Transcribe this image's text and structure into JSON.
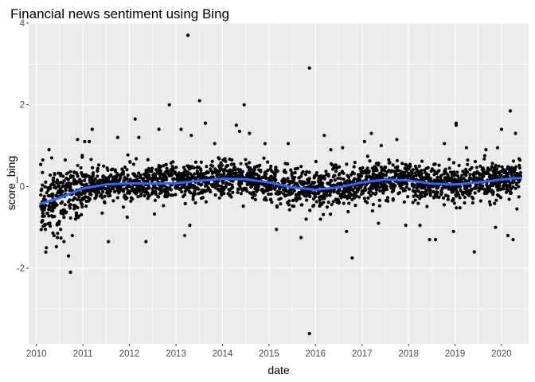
{
  "chart_data": {
    "type": "scatter",
    "title": "Financial news sentiment using Bing",
    "xlabel": "date",
    "ylabel": "score_bing",
    "xlim": [
      "2009-11-01",
      "2020-08-01"
    ],
    "ylim": [
      -3.85,
      4.0
    ],
    "x_ticks": [
      "2010",
      "2011",
      "2012",
      "2013",
      "2014",
      "2015",
      "2016",
      "2017",
      "2018",
      "2019",
      "2020"
    ],
    "y_ticks": [
      -2,
      0,
      2,
      4
    ],
    "grid": true,
    "legend": "none",
    "point_density_note": "",
    "colors": {
      "panel": "#EBEBEB",
      "grid": "#FFFFFF",
      "points": "#000000",
      "smooth": "#3366FF"
    },
    "series": [
      {
        "kind": "points",
        "points": [
          [
            "2010-03-20",
            -1.5
          ],
          [
            "2010-04-10",
            0.9
          ],
          [
            "2010-05-20",
            -1.2
          ],
          [
            "2010-06-15",
            -1.25
          ],
          [
            "2010-07-10",
            -1.05
          ],
          [
            "2010-08-05",
            -1.35
          ],
          [
            "2010-09-10",
            -1.7
          ],
          [
            "2010-09-25",
            -2.1
          ],
          [
            "2010-10-10",
            -1.2
          ],
          [
            "2010-06-20",
            -0.9
          ],
          [
            "2010-02-20",
            0.65
          ],
          [
            "2010-05-01",
            0.7
          ],
          [
            "2010-08-15",
            0.65
          ],
          [
            "2010-11-20",
            1.15
          ],
          [
            "2011-01-15",
            1.1
          ],
          [
            "2011-02-20",
            1.1
          ],
          [
            "2011-03-15",
            1.4
          ],
          [
            "2011-07-20",
            -1.35
          ],
          [
            "2011-06-01",
            -0.65
          ],
          [
            "2011-10-01",
            1.2
          ],
          [
            "2011-12-15",
            -0.75
          ],
          [
            "2012-02-15",
            1.65
          ],
          [
            "2012-03-15",
            1.2
          ],
          [
            "2012-05-10",
            -1.35
          ],
          [
            "2012-08-20",
            1.4
          ],
          [
            "2012-11-10",
            2.0
          ],
          [
            "2013-02-10",
            1.4
          ],
          [
            "2013-03-10",
            -1.2
          ],
          [
            "2013-04-20",
            -0.95
          ],
          [
            "2013-04-05",
            3.7
          ],
          [
            "2013-05-01",
            1.25
          ],
          [
            "2013-07-05",
            2.1
          ],
          [
            "2013-08-20",
            1.55
          ],
          [
            "2013-11-01",
            1.05
          ],
          [
            "2014-04-20",
            1.5
          ],
          [
            "2014-06-20",
            2.0
          ],
          [
            "2014-05-15",
            1.35
          ],
          [
            "2014-08-01",
            1.3
          ],
          [
            "2014-12-01",
            1.05
          ],
          [
            "2015-03-01",
            -1.05
          ],
          [
            "2015-06-01",
            1.05
          ],
          [
            "2015-09-10",
            -1.25
          ],
          [
            "2015-10-20",
            -0.8
          ],
          [
            "2015-11-15",
            2.9
          ],
          [
            "2015-11-15",
            -3.6
          ],
          [
            "2016-02-10",
            -0.8
          ],
          [
            "2016-03-10",
            1.25
          ],
          [
            "2016-05-01",
            0.9
          ],
          [
            "2016-08-01",
            0.95
          ],
          [
            "2016-09-01",
            -1.1
          ],
          [
            "2016-10-15",
            -1.75
          ],
          [
            "2017-01-20",
            1.1
          ],
          [
            "2017-03-15",
            1.3
          ],
          [
            "2017-05-10",
            -0.9
          ],
          [
            "2017-06-01",
            1.0
          ],
          [
            "2017-10-01",
            1.15
          ],
          [
            "2017-12-10",
            -0.95
          ],
          [
            "2018-04-01",
            -0.95
          ],
          [
            "2018-06-15",
            -1.3
          ],
          [
            "2018-08-01",
            -1.3
          ],
          [
            "2018-10-10",
            1.05
          ],
          [
            "2018-12-20",
            -1.1
          ],
          [
            "2019-01-10",
            1.5
          ],
          [
            "2019-01-10",
            1.55
          ],
          [
            "2019-04-01",
            0.95
          ],
          [
            "2019-06-01",
            -1.6
          ],
          [
            "2019-09-01",
            0.9
          ],
          [
            "2019-11-15",
            -1.0
          ],
          [
            "2020-01-01",
            1.4
          ],
          [
            "2020-02-20",
            -1.2
          ],
          [
            "2020-03-10",
            1.85
          ],
          [
            "2020-04-01",
            -1.3
          ],
          [
            "2020-04-20",
            1.3
          ],
          [
            "2020-05-01",
            -0.55
          ],
          [
            "2019-12-01",
            0.95
          ]
        ]
      },
      {
        "kind": "smooth",
        "name": "",
        "points": [
          [
            "2010-02-01",
            -0.42
          ],
          [
            "2010-07-01",
            -0.28
          ],
          [
            "2011-01-01",
            -0.05
          ],
          [
            "2011-07-01",
            0.05
          ],
          [
            "2012-01-01",
            0.08
          ],
          [
            "2012-07-01",
            0.07
          ],
          [
            "2013-01-01",
            0.08
          ],
          [
            "2013-07-01",
            0.14
          ],
          [
            "2014-01-01",
            0.19
          ],
          [
            "2014-07-01",
            0.18
          ],
          [
            "2015-01-01",
            0.1
          ],
          [
            "2015-07-01",
            -0.02
          ],
          [
            "2016-01-01",
            -0.08
          ],
          [
            "2016-07-01",
            -0.02
          ],
          [
            "2017-01-01",
            0.1
          ],
          [
            "2017-07-01",
            0.17
          ],
          [
            "2018-01-01",
            0.15
          ],
          [
            "2018-07-01",
            0.07
          ],
          [
            "2019-01-01",
            0.05
          ],
          [
            "2019-07-01",
            0.1
          ],
          [
            "2020-01-01",
            0.17
          ],
          [
            "2020-06-01",
            0.21
          ]
        ]
      }
    ]
  }
}
